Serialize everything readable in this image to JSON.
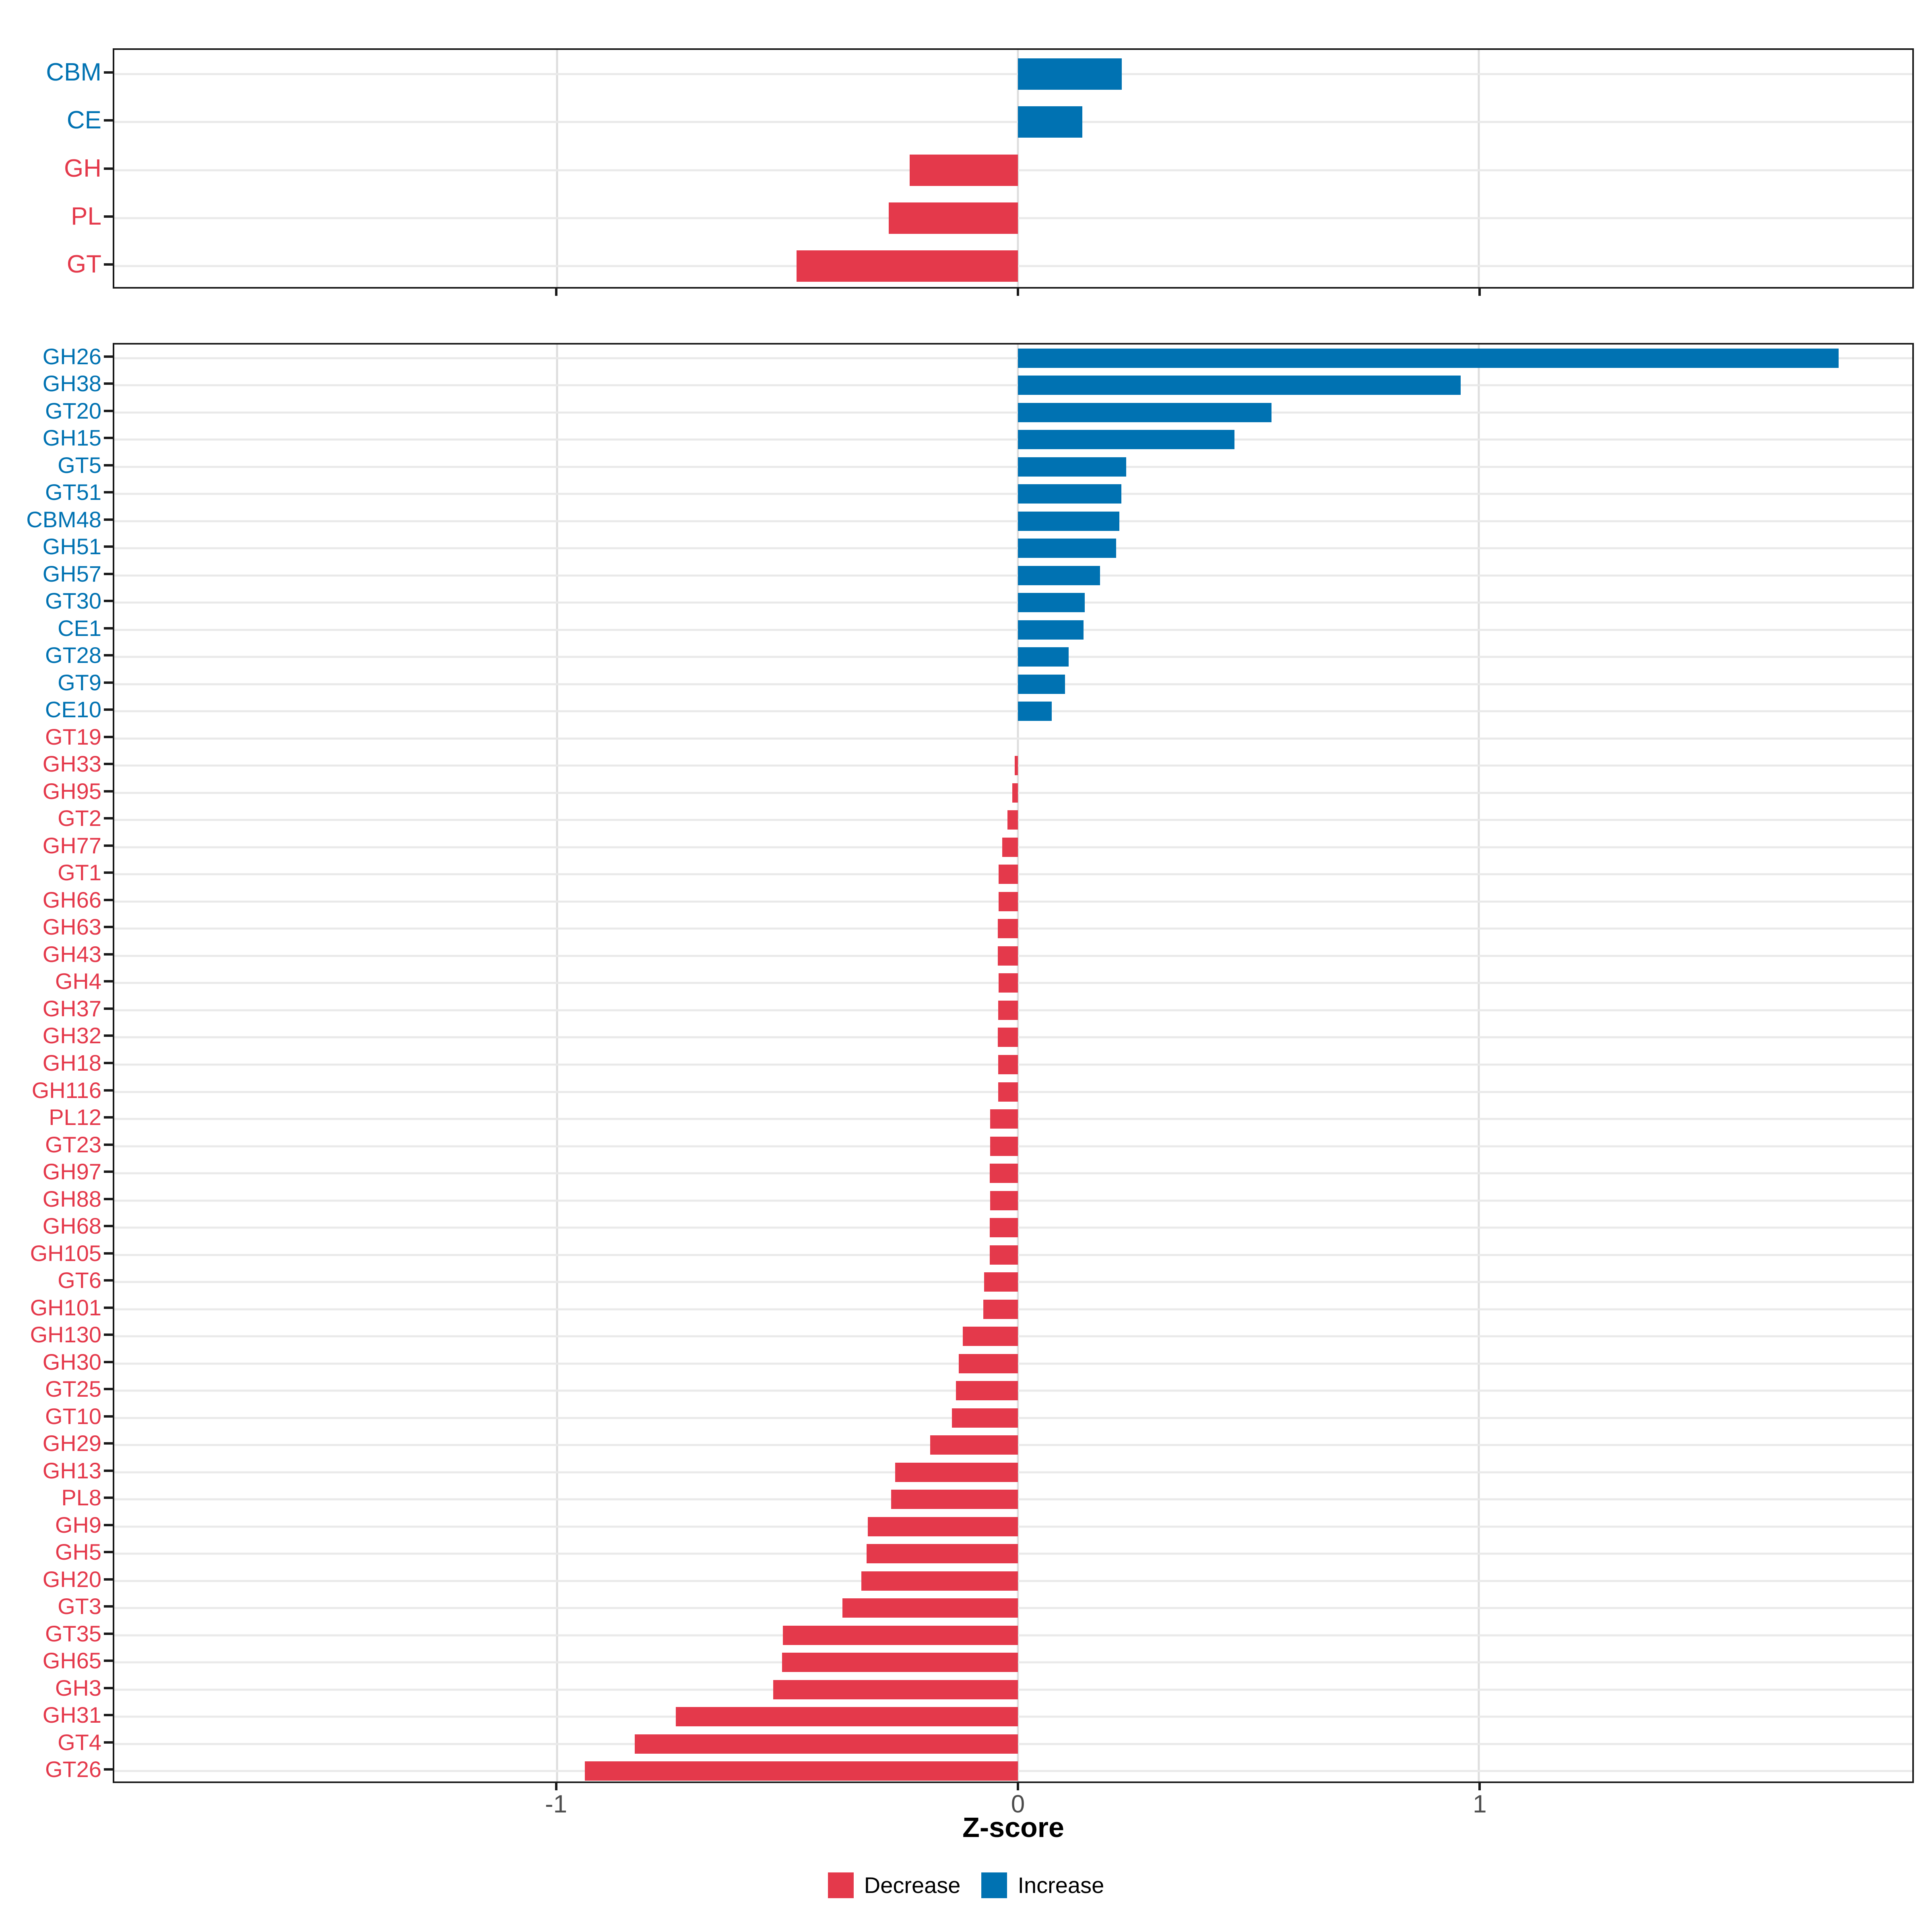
{
  "colors": {
    "decrease": "#E4394B",
    "increase": "#0072B2",
    "grid_vertical": "#DEDEDE",
    "grid_horizontal": "#E9E9E9",
    "axis_text": "#4D4D4D",
    "border": "#1A1A1A"
  },
  "axis": {
    "xlabel": "Z-score"
  },
  "legend": {
    "items": [
      {
        "label": "Decrease",
        "key": "decrease"
      },
      {
        "label": "Increase",
        "key": "increase"
      }
    ]
  },
  "chart_data": [
    {
      "id": "cazyme-class-panel",
      "type": "bar",
      "orientation": "horizontal",
      "xlabel": "Z-score",
      "xlim": [
        -1.96,
        1.94
      ],
      "x_ticks": [
        {
          "v": -1,
          "label": "-1"
        },
        {
          "v": 0,
          "label": "0"
        },
        {
          "v": 1,
          "label": "1"
        }
      ],
      "show_x_tick_labels": false,
      "rows": [
        {
          "label": "CBM",
          "value": 0.225,
          "group": "increase"
        },
        {
          "label": "CE",
          "value": 0.14,
          "group": "increase"
        },
        {
          "label": "GH",
          "value": -0.235,
          "group": "decrease"
        },
        {
          "label": "PL",
          "value": -0.28,
          "group": "decrease"
        },
        {
          "label": "GT",
          "value": -0.48,
          "group": "decrease"
        }
      ]
    },
    {
      "id": "cazyme-family-panel",
      "type": "bar",
      "orientation": "horizontal",
      "xlabel": "Z-score",
      "xlim": [
        -1.96,
        1.94
      ],
      "x_ticks": [
        {
          "v": -1,
          "label": "-1"
        },
        {
          "v": 0,
          "label": "0"
        },
        {
          "v": 1,
          "label": "1"
        }
      ],
      "show_x_tick_labels": true,
      "rows": [
        {
          "label": "GH26",
          "value": 1.78,
          "group": "increase"
        },
        {
          "label": "GH38",
          "value": 0.96,
          "group": "increase"
        },
        {
          "label": "GT20",
          "value": 0.55,
          "group": "increase"
        },
        {
          "label": "GH15",
          "value": 0.47,
          "group": "increase"
        },
        {
          "label": "GT5",
          "value": 0.235,
          "group": "increase"
        },
        {
          "label": "GT51",
          "value": 0.224,
          "group": "increase"
        },
        {
          "label": "CBM48",
          "value": 0.22,
          "group": "increase"
        },
        {
          "label": "GH51",
          "value": 0.213,
          "group": "increase"
        },
        {
          "label": "GH57",
          "value": 0.178,
          "group": "increase"
        },
        {
          "label": "GT30",
          "value": 0.145,
          "group": "increase"
        },
        {
          "label": "CE1",
          "value": 0.142,
          "group": "increase"
        },
        {
          "label": "GT28",
          "value": 0.11,
          "group": "increase"
        },
        {
          "label": "GT9",
          "value": 0.102,
          "group": "increase"
        },
        {
          "label": "CE10",
          "value": 0.073,
          "group": "increase"
        },
        {
          "label": "GT19",
          "value": 0.0,
          "group": "decrease"
        },
        {
          "label": "GH33",
          "value": -0.007,
          "group": "decrease"
        },
        {
          "label": "GH95",
          "value": -0.012,
          "group": "decrease"
        },
        {
          "label": "GT2",
          "value": -0.023,
          "group": "decrease"
        },
        {
          "label": "GH77",
          "value": -0.034,
          "group": "decrease"
        },
        {
          "label": "GT1",
          "value": -0.042,
          "group": "decrease"
        },
        {
          "label": "GH66",
          "value": -0.042,
          "group": "decrease"
        },
        {
          "label": "GH63",
          "value": -0.044,
          "group": "decrease"
        },
        {
          "label": "GH43",
          "value": -0.044,
          "group": "decrease"
        },
        {
          "label": "GH4",
          "value": -0.042,
          "group": "decrease"
        },
        {
          "label": "GH37",
          "value": -0.043,
          "group": "decrease"
        },
        {
          "label": "GH32",
          "value": -0.044,
          "group": "decrease"
        },
        {
          "label": "GH18",
          "value": -0.043,
          "group": "decrease"
        },
        {
          "label": "GH116",
          "value": -0.043,
          "group": "decrease"
        },
        {
          "label": "PL12",
          "value": -0.06,
          "group": "decrease"
        },
        {
          "label": "GT23",
          "value": -0.06,
          "group": "decrease"
        },
        {
          "label": "GH97",
          "value": -0.061,
          "group": "decrease"
        },
        {
          "label": "GH88",
          "value": -0.06,
          "group": "decrease"
        },
        {
          "label": "GH68",
          "value": -0.061,
          "group": "decrease"
        },
        {
          "label": "GH105",
          "value": -0.061,
          "group": "decrease"
        },
        {
          "label": "GT6",
          "value": -0.073,
          "group": "decrease"
        },
        {
          "label": "GH101",
          "value": -0.075,
          "group": "decrease"
        },
        {
          "label": "GH130",
          "value": -0.12,
          "group": "decrease"
        },
        {
          "label": "GH30",
          "value": -0.128,
          "group": "decrease"
        },
        {
          "label": "GT25",
          "value": -0.134,
          "group": "decrease"
        },
        {
          "label": "GT10",
          "value": -0.143,
          "group": "decrease"
        },
        {
          "label": "GH29",
          "value": -0.19,
          "group": "decrease"
        },
        {
          "label": "GH13",
          "value": -0.266,
          "group": "decrease"
        },
        {
          "label": "PL8",
          "value": -0.275,
          "group": "decrease"
        },
        {
          "label": "GH9",
          "value": -0.326,
          "group": "decrease"
        },
        {
          "label": "GH5",
          "value": -0.328,
          "group": "decrease"
        },
        {
          "label": "GH20",
          "value": -0.34,
          "group": "decrease"
        },
        {
          "label": "GT3",
          "value": -0.381,
          "group": "decrease"
        },
        {
          "label": "GT35",
          "value": -0.51,
          "group": "decrease"
        },
        {
          "label": "GH65",
          "value": -0.512,
          "group": "decrease"
        },
        {
          "label": "GH3",
          "value": -0.531,
          "group": "decrease"
        },
        {
          "label": "GH31",
          "value": -0.742,
          "group": "decrease"
        },
        {
          "label": "GT4",
          "value": -0.831,
          "group": "decrease"
        },
        {
          "label": "GT26",
          "value": -0.939,
          "group": "decrease"
        }
      ]
    }
  ]
}
